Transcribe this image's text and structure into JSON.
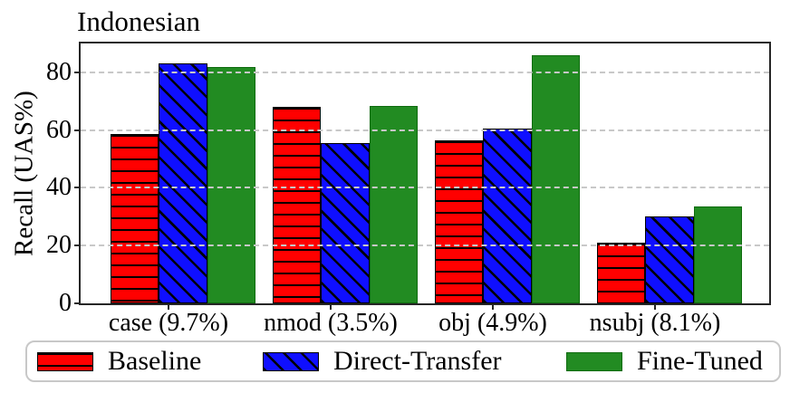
{
  "chart_data": {
    "type": "bar",
    "title": "Indonesian",
    "xlabel": "",
    "ylabel": "Recall (UAS%)",
    "categories": [
      "case (9.7%)",
      "nmod (3.5%)",
      "obj (4.9%)",
      "nsubj (8.1%)"
    ],
    "series": [
      {
        "name": "Baseline",
        "color": "#ff0000",
        "edge_color": "#000000",
        "hatch": "horizontal",
        "values": [
          58.5,
          68.0,
          56.5,
          21.0
        ]
      },
      {
        "name": "Direct-Transfer",
        "color": "#0f0fff",
        "edge_color": "#000000",
        "hatch": "diagonal-backslash",
        "values": [
          83.0,
          55.5,
          60.5,
          30.0
        ]
      },
      {
        "name": "Fine-Tuned",
        "color": "#228b22",
        "edge_color": "#0e6b0e",
        "hatch": "none",
        "values": [
          82.0,
          68.5,
          86.0,
          33.5
        ]
      }
    ],
    "ylim": [
      0,
      90
    ],
    "yticks": [
      0,
      20,
      40,
      60,
      80
    ],
    "grid": {
      "axis": "y",
      "style": "dashed",
      "color": "#c8c8c8",
      "drawn_above_bars": true
    },
    "legend_position": "bottom-horizontal"
  }
}
